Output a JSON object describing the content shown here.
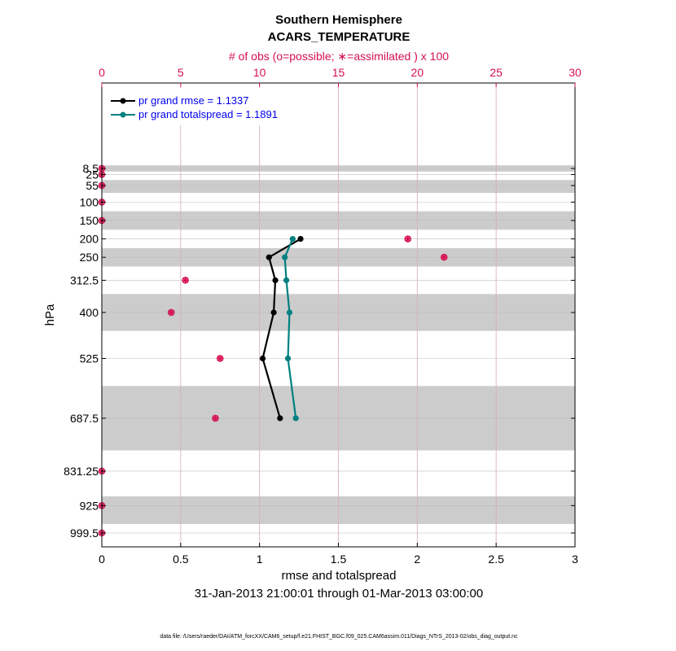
{
  "title": "Southern Hemisphere",
  "subtitle": "ACARS_TEMPERATURE",
  "top_axis_label": "# of obs (o=possible; ∗=assimilated ) x 100",
  "date_range": "31-Jan-2013 21:00:01 through 01-Mar-2013 03:00:00",
  "footer": "data file: /Users/raeder/DAI/ATM_forcXX/CAM6_setup/f.e21.FHIST_BGC.f09_025.CAM6assim.011/Diags_NTrS_2013-02/obs_diag_output.nc",
  "colors": {
    "rmse": "#000000",
    "spread": "#008080",
    "obs": "#d6104f",
    "band": "#cccccc",
    "legend_text": "#0000ee"
  },
  "chart_data": {
    "type": "line",
    "xlabel": "rmse and totalspread",
    "ylabel": "hPa",
    "xlim": [
      0,
      3
    ],
    "x_ticks": [
      "0",
      "0.5",
      "1",
      "1.5",
      "2",
      "2.5",
      "3"
    ],
    "x_tick_values": [
      0,
      0.5,
      1,
      1.5,
      2,
      2.5,
      3
    ],
    "top_xlim": [
      0,
      30
    ],
    "top_ticks": [
      "0",
      "5",
      "10",
      "15",
      "20",
      "25",
      "30"
    ],
    "top_tick_values": [
      0,
      5,
      10,
      15,
      20,
      25,
      30
    ],
    "levels": [
      "8.5",
      "25",
      "55",
      "100",
      "150",
      "200",
      "250",
      "312.5",
      "400",
      "525",
      "687.5",
      "831.25",
      "925",
      "999.5"
    ],
    "level_values": [
      8.5,
      25,
      55,
      100,
      150,
      200,
      250,
      312.5,
      400,
      525,
      687.5,
      831.25,
      925,
      999.5
    ],
    "shaded_layers": [
      [
        0,
        17
      ],
      [
        40,
        75
      ],
      [
        125,
        175
      ],
      [
        225,
        275
      ],
      [
        350,
        450
      ],
      [
        600,
        775
      ],
      [
        900,
        975
      ]
    ],
    "series": [
      {
        "name": "pr grand rmse = 1.1337",
        "color": "#000000",
        "levels": [
          200,
          250,
          312.5,
          400,
          525,
          687.5
        ],
        "values": [
          1.26,
          1.06,
          1.1,
          1.09,
          1.02,
          1.13
        ]
      },
      {
        "name": "pr grand totalspread = 1.1891",
        "color": "#008080",
        "levels": [
          200,
          250,
          312.5,
          400,
          525,
          687.5
        ],
        "values": [
          1.21,
          1.16,
          1.17,
          1.19,
          1.18,
          1.23
        ]
      }
    ],
    "obs_counts": {
      "levels": [
        8.5,
        25,
        55,
        100,
        150,
        200,
        250,
        312.5,
        400,
        525,
        687.5,
        831.25,
        925,
        999.5
      ],
      "possible": [
        0,
        0,
        0,
        0,
        0,
        19.4,
        21.7,
        5.3,
        4.4,
        7.5,
        7.2,
        0,
        0,
        0
      ],
      "assimilated": [
        0,
        0,
        0,
        0,
        0,
        19.4,
        21.7,
        5.3,
        4.4,
        7.5,
        7.2,
        0,
        0,
        0
      ]
    }
  }
}
